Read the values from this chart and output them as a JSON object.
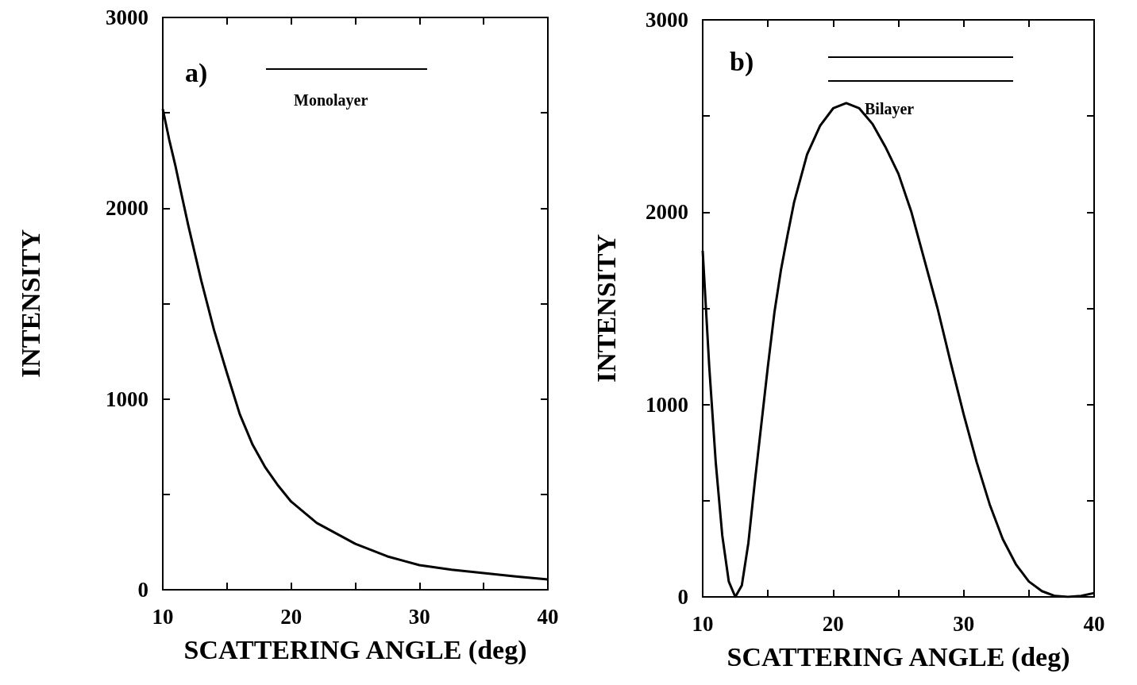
{
  "chart_data": [
    {
      "type": "line",
      "xlabel": "SCATTERING ANGLE (deg)",
      "ylabel": "INTENSITY",
      "annotations": [
        "a)",
        "Monolayer"
      ],
      "x": [
        10,
        10.5,
        11,
        11.5,
        12,
        13,
        14,
        15,
        16,
        17,
        18,
        19,
        20,
        22,
        25,
        27.5,
        30,
        32.5,
        35,
        37.5,
        40
      ],
      "series": [
        {
          "color": "#000000",
          "values": [
            2520,
            2360,
            2218,
            2060,
            1906,
            1620,
            1360,
            1136,
            920,
            760,
            640,
            545,
            462,
            350,
            241,
            175,
            129,
            105,
            87,
            70,
            54
          ]
        }
      ],
      "xlim": [
        10,
        40
      ],
      "xticks": [
        10,
        {
          "value": 15,
          "label": null
        },
        20,
        {
          "value": 25,
          "label": null
        },
        30,
        {
          "value": 35,
          "label": null
        },
        40
      ],
      "ylim": [
        0,
        3000
      ],
      "yticks": [
        0,
        {
          "value": 500,
          "label": null
        },
        1000,
        {
          "value": 1500,
          "label": null
        },
        2000,
        {
          "value": 2500,
          "label": null
        },
        3000
      ],
      "grid": false,
      "marker": "none",
      "line_style": "solid"
    },
    {
      "type": "line",
      "xlabel": "SCATTERING ANGLE (deg)",
      "ylabel": "INTENSITY",
      "annotations": [
        "b)",
        "Bilayer"
      ],
      "x": [
        10,
        10.5,
        11,
        11.5,
        12,
        12.5,
        13,
        13.5,
        14,
        14.5,
        15,
        15.5,
        16,
        16.5,
        17,
        18,
        19,
        20,
        21,
        22,
        23,
        24,
        25,
        26,
        27,
        28,
        29,
        30,
        31,
        32,
        33,
        34,
        35,
        36,
        37,
        38,
        39,
        40
      ],
      "series": [
        {
          "color": "#000000",
          "values": [
            1800,
            1200,
            700,
            320,
            80,
            0,
            60,
            280,
            600,
            900,
            1200,
            1480,
            1700,
            1880,
            2050,
            2300,
            2450,
            2540,
            2567,
            2540,
            2460,
            2340,
            2200,
            2000,
            1750,
            1500,
            1220,
            950,
            700,
            480,
            300,
            170,
            80,
            30,
            5,
            0,
            5,
            20
          ]
        }
      ],
      "xlim": [
        10,
        40
      ],
      "xticks": [
        10,
        {
          "value": 15,
          "label": null
        },
        20,
        {
          "value": 25,
          "label": null
        },
        30,
        {
          "value": 35,
          "label": null
        },
        40
      ],
      "ylim": [
        0,
        3000
      ],
      "yticks": [
        0,
        {
          "value": 500,
          "label": null
        },
        1000,
        {
          "value": 1500,
          "label": null
        },
        2000,
        {
          "value": 2500,
          "label": null
        },
        3000
      ],
      "grid": false,
      "marker": "none",
      "line_style": "solid"
    }
  ]
}
